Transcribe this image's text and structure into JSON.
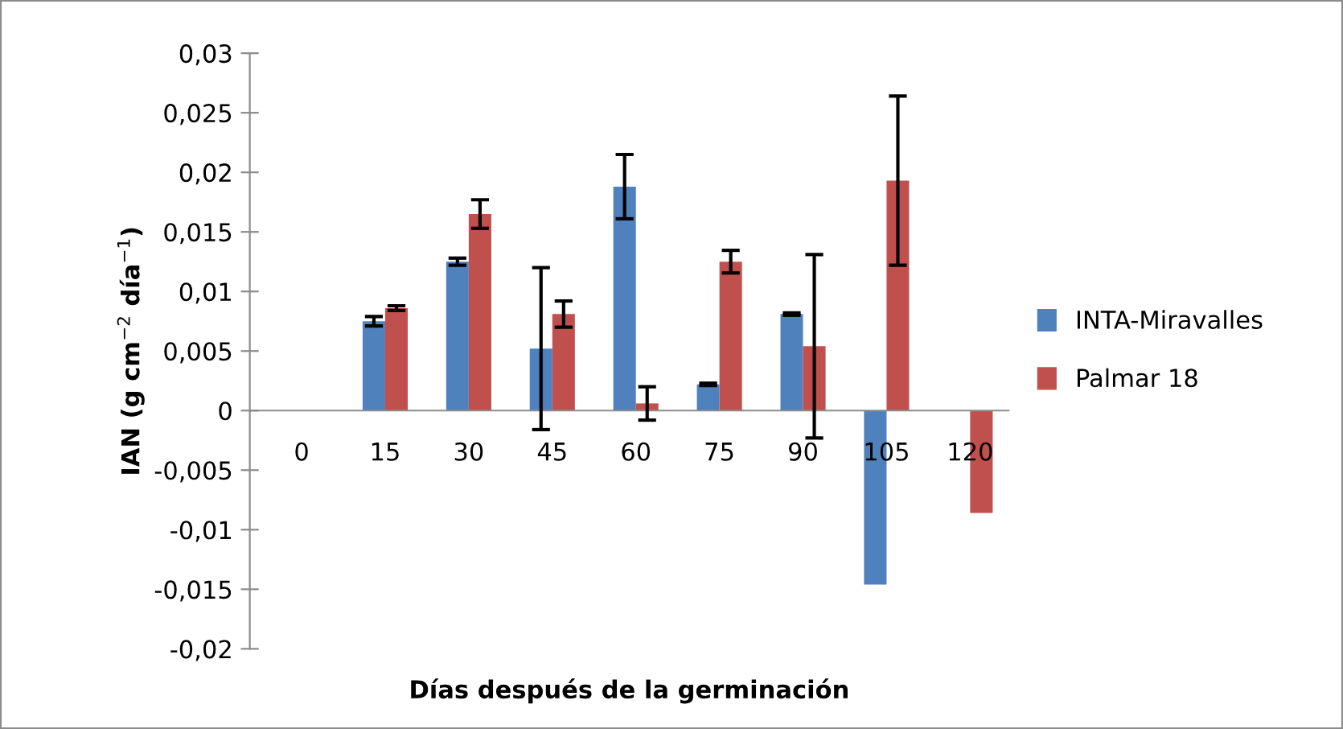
{
  "chart_data": {
    "type": "bar",
    "xlabel": "Días después de la germinación",
    "ylabel": "IAN (g cm$^{−2}$ día$^{−1}$)",
    "categories": [
      "0",
      "15",
      "30",
      "45",
      "60",
      "75",
      "90",
      "105",
      "120"
    ],
    "series": [
      {
        "name": "INTA-Miravalles",
        "color": "#4f81bd",
        "values": [
          null,
          0.0075,
          0.0125,
          0.0052,
          0.0188,
          0.0022,
          0.0081,
          -0.0146,
          null
        ],
        "errors": [
          null,
          0.0004,
          0.0003,
          0.0068,
          0.0027,
          0.0001,
          0.0001,
          null,
          null
        ]
      },
      {
        "name": "Palmar 18",
        "color": "#c0504d",
        "values": [
          null,
          0.0086,
          0.0165,
          0.0081,
          0.0006,
          0.0125,
          0.0054,
          0.0193,
          -0.0086
        ],
        "errors": [
          null,
          0.0002,
          0.0012,
          0.0011,
          0.0014,
          0.00095,
          0.0077,
          0.0071,
          null
        ]
      }
    ],
    "ylim": [
      -0.02,
      0.03
    ],
    "yticks": [
      {
        "value": -0.02,
        "label": "-0,02"
      },
      {
        "value": -0.015,
        "label": "-0,015"
      },
      {
        "value": -0.01,
        "label": "-0,01"
      },
      {
        "value": -0.005,
        "label": "-0,005"
      },
      {
        "value": 0,
        "label": "0"
      },
      {
        "value": 0.005,
        "label": "0,005"
      },
      {
        "value": 0.01,
        "label": "0,01"
      },
      {
        "value": 0.015,
        "label": "0,015"
      },
      {
        "value": 0.02,
        "label": "0,02"
      },
      {
        "value": 0.025,
        "label": "0,025"
      },
      {
        "value": 0.03,
        "label": "0,03"
      }
    ],
    "grid": false,
    "legend": "right"
  }
}
